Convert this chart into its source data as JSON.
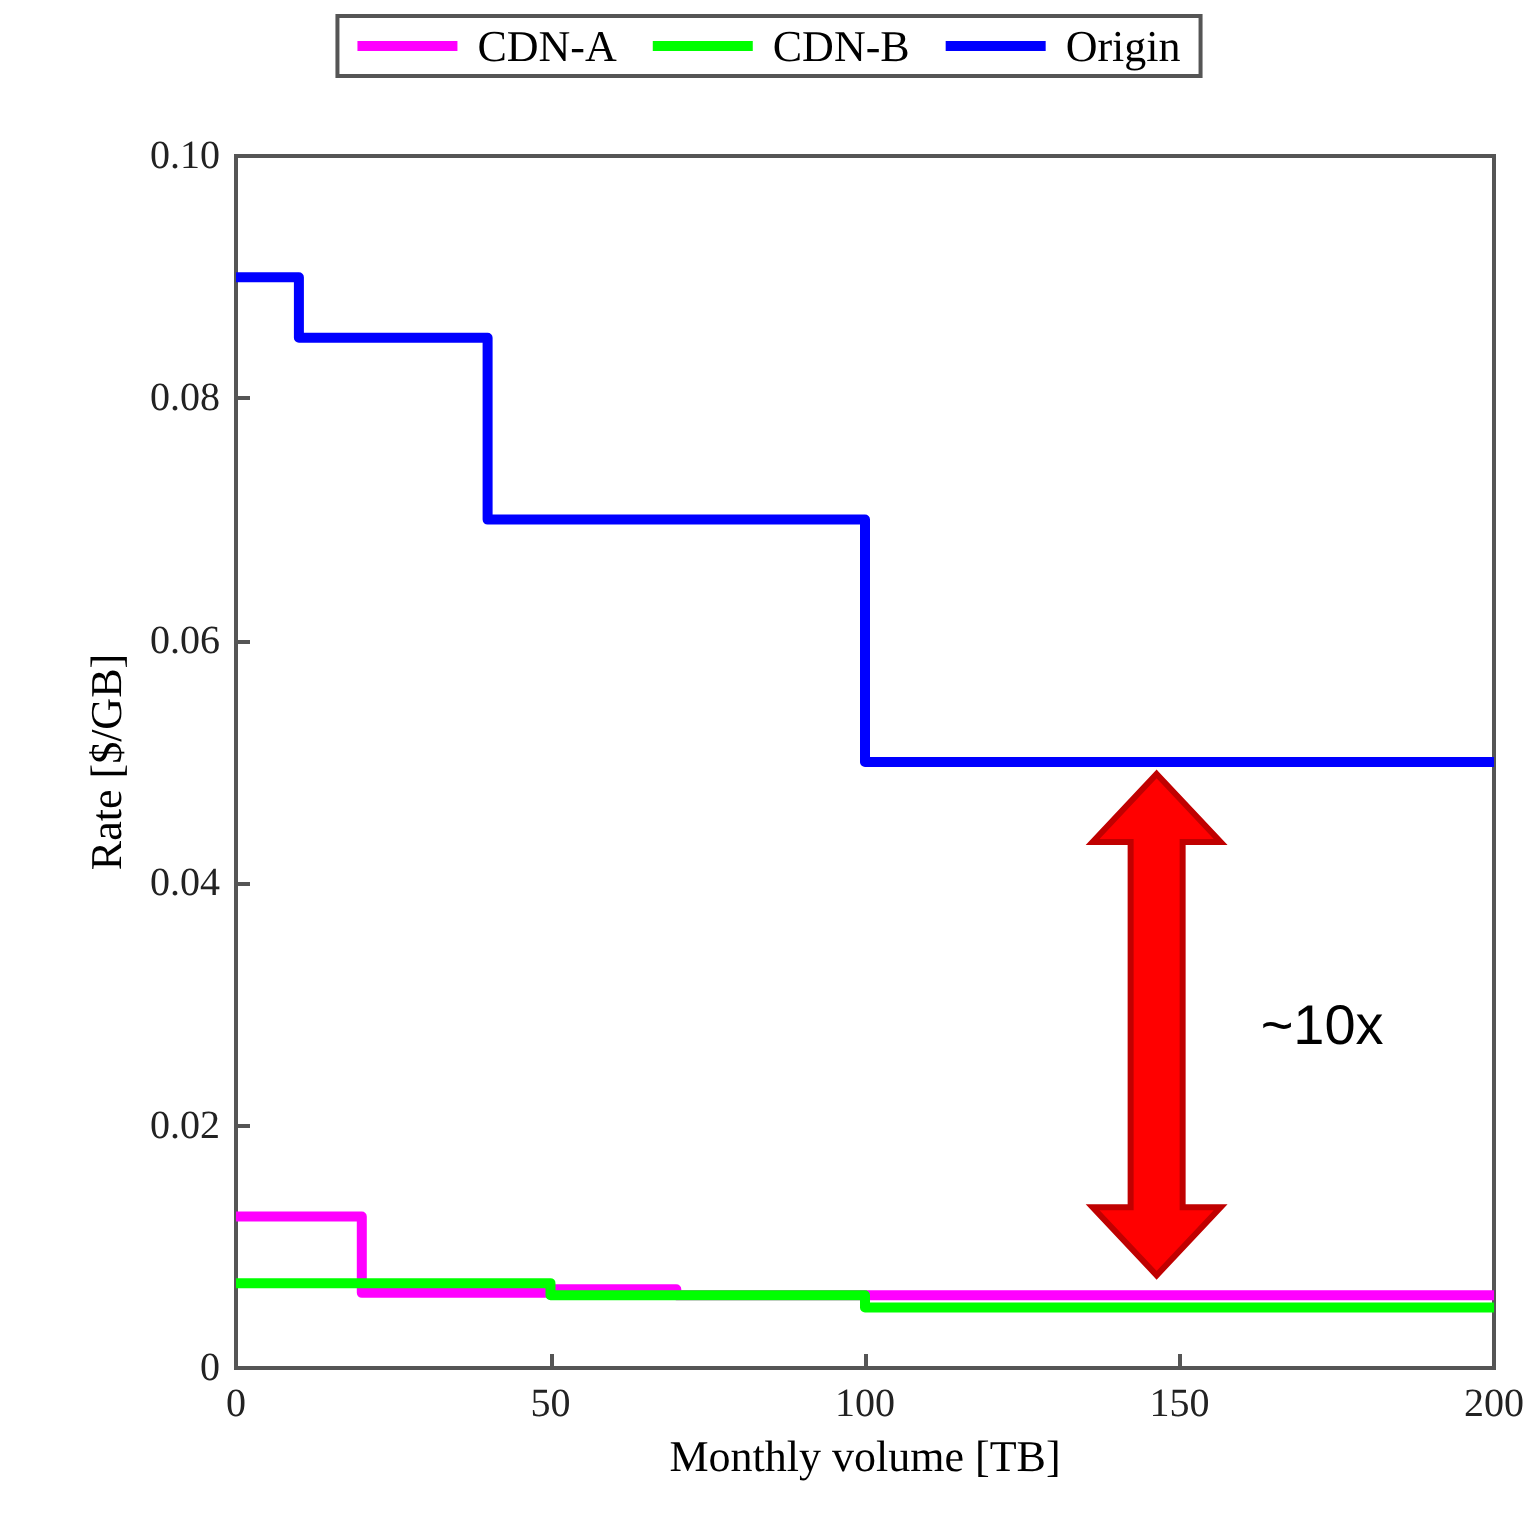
{
  "chart_data": {
    "type": "step",
    "xlabel": "Monthly volume [TB]",
    "ylabel": "Rate [$/GB]",
    "series": [
      {
        "name": "CDN-A",
        "color": "#ff00ff",
        "x": [
          0,
          20,
          50,
          70,
          100,
          200
        ],
        "values": [
          0.0125,
          0.0062,
          0.0065,
          0.006,
          0.006,
          0.006
        ]
      },
      {
        "name": "CDN-B",
        "color": "#00ff00",
        "x": [
          0,
          50,
          100,
          200
        ],
        "values": [
          0.007,
          0.006,
          0.005,
          0.005
        ]
      },
      {
        "name": "Origin",
        "color": "#0000ff",
        "x": [
          0,
          10,
          40,
          100,
          200
        ],
        "values": [
          0.09,
          0.085,
          0.07,
          0.05,
          0.05
        ]
      }
    ],
    "xlim": [
      0,
      200
    ],
    "xticks": [
      0,
      50,
      100,
      150,
      200
    ],
    "ylim": [
      0,
      0.1
    ],
    "yticks": [
      0,
      0.02,
      0.04,
      0.06,
      0.08,
      {
        "value": 0.1,
        "label": "0.10"
      }
    ],
    "annotations": [
      "~10x"
    ],
    "legend": "top",
    "grid": false,
    "line_style": "solid",
    "marker": "none"
  }
}
